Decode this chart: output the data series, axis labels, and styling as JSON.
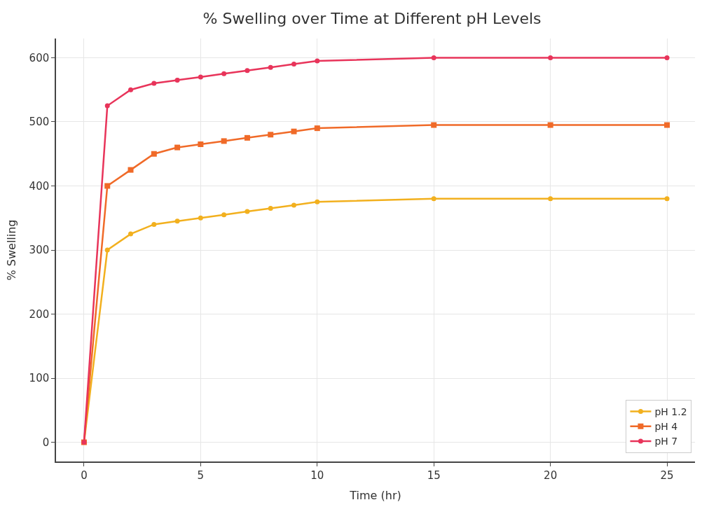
{
  "chart_data": {
    "type": "line",
    "title": "% Swelling over Time at Different pH Levels",
    "xlabel": "Time (hr)",
    "ylabel": "% Swelling",
    "x": [
      0,
      1,
      2,
      3,
      4,
      5,
      6,
      7,
      8,
      9,
      10,
      15,
      20,
      25
    ],
    "series": [
      {
        "name": "pH 1.2",
        "color": "#f2b01e",
        "marker": "circle",
        "values": [
          0,
          300,
          325,
          340,
          345,
          350,
          355,
          360,
          365,
          370,
          375,
          380,
          380,
          380
        ]
      },
      {
        "name": "pH 4",
        "color": "#f06a28",
        "marker": "square",
        "values": [
          0,
          400,
          425,
          450,
          460,
          465,
          470,
          475,
          480,
          485,
          490,
          495,
          495,
          495
        ]
      },
      {
        "name": "pH 7",
        "color": "#e8345a",
        "marker": "circle",
        "values": [
          0,
          525,
          550,
          560,
          565,
          570,
          575,
          580,
          585,
          590,
          595,
          600,
          600,
          600
        ]
      }
    ],
    "xlim": [
      -1.2,
      26.2
    ],
    "xticks": [
      0,
      5,
      10,
      15,
      20,
      25
    ],
    "ylim": [
      -30,
      630
    ],
    "yticks": [
      0,
      100,
      200,
      300,
      400,
      500,
      600
    ],
    "grid": true,
    "legend": "bottom right",
    "line_style": "solid"
  }
}
